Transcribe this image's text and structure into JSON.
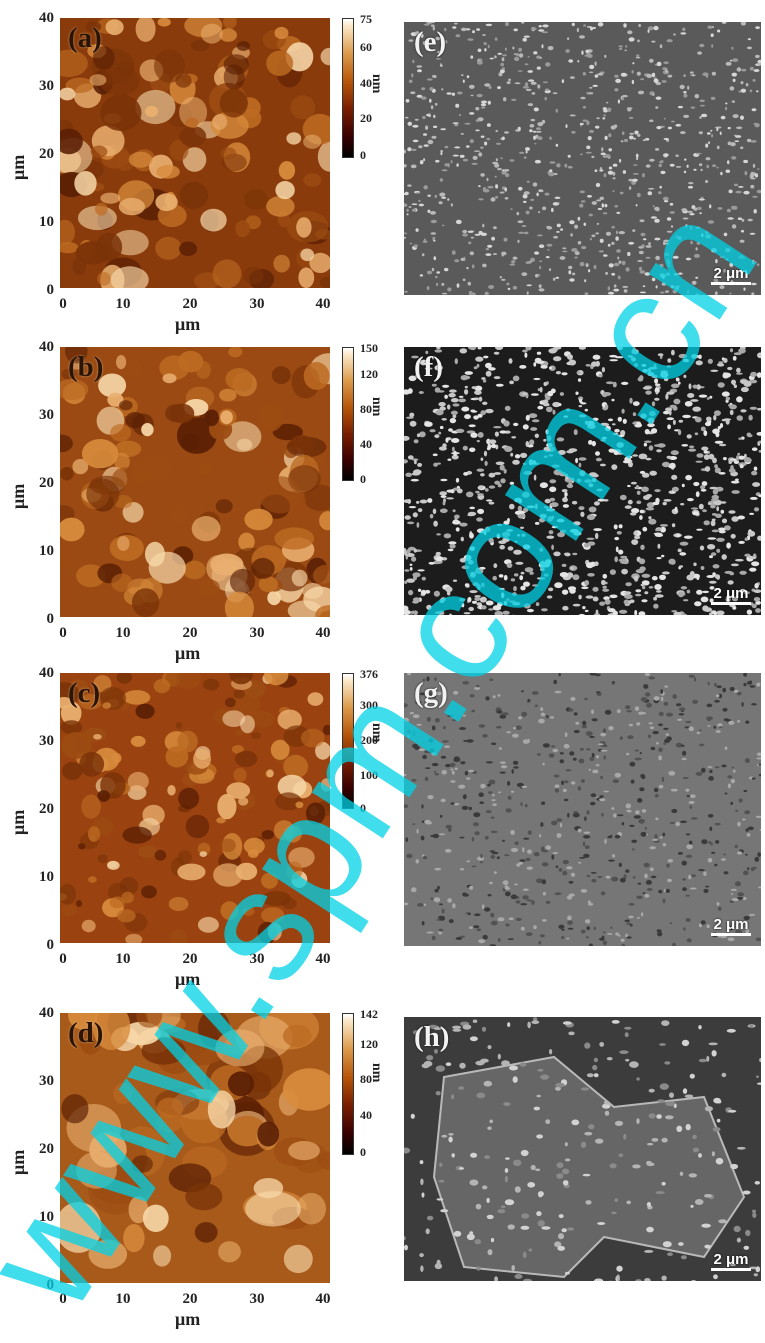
{
  "panels": [
    {
      "label": "(a)",
      "colorbar_ticks": [
        "75",
        "60",
        "40",
        "20",
        "0"
      ],
      "colorbar_max_nm": 75
    },
    {
      "label": "(b)",
      "colorbar_ticks": [
        "150",
        "120",
        "80",
        "40",
        "0"
      ],
      "colorbar_max_nm": 150
    },
    {
      "label": "(c)",
      "colorbar_ticks": [
        "376",
        "300",
        "200",
        "100",
        "0"
      ],
      "colorbar_max_nm": 376
    },
    {
      "label": "(d)",
      "colorbar_ticks": [
        "142",
        "120",
        "80",
        "40",
        "0"
      ],
      "colorbar_max_nm": 142
    }
  ],
  "sem_panels": [
    {
      "label": "(e)",
      "scale": "2 μm"
    },
    {
      "label": "(f)",
      "scale": "2 μm"
    },
    {
      "label": "(g)",
      "scale": "2 μm"
    },
    {
      "label": "(h)",
      "scale": "2 μm"
    }
  ],
  "axis": {
    "y_ticks": [
      "40",
      "30",
      "20",
      "10",
      "0"
    ],
    "x_ticks": [
      "0",
      "10",
      "20",
      "30",
      "40"
    ],
    "y_label": "μm",
    "x_label": "μm",
    "colorbar_unit": "nm"
  },
  "watermark": "www.spm.com.cn",
  "colors": {
    "afm_dark": "#3a1200",
    "afm_mid": "#b5601a",
    "afm_light": "#f6d6a4",
    "sem_bg": "#4a4a4a",
    "watermark": "#00d2e6"
  }
}
